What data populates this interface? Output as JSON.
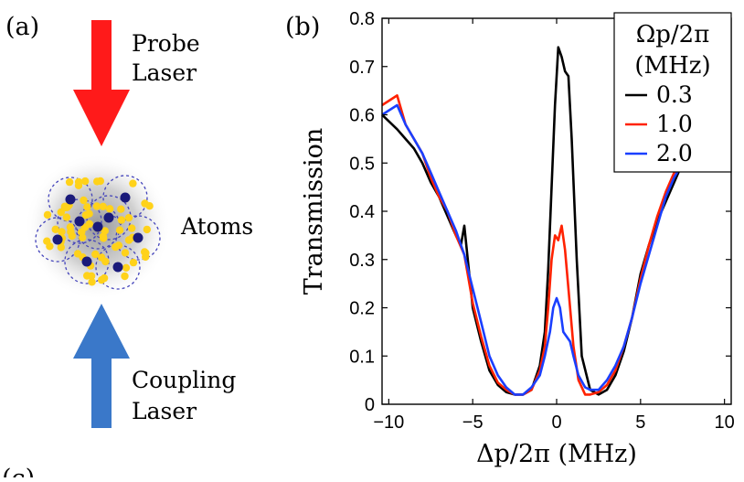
{
  "panel_a": {
    "label": "(a)",
    "probe_label_line1": "Probe",
    "probe_label_line2": "Laser",
    "atoms_label": "Atoms",
    "coupling_label_line1": "Coupling",
    "coupling_label_line2": "Laser",
    "probe_arrow_color": "#ff1a1a",
    "coupling_arrow_color": "#3a78c9",
    "atom_small_color": "#ffd21a",
    "atom_large_color": "#1a1a7a",
    "next_panel_label": "(c)"
  },
  "panel_b": {
    "label": "(b)"
  },
  "chart_data": {
    "type": "line",
    "title": "",
    "xlabel": "Δp/2π (MHz)",
    "ylabel": "Transmission",
    "xlim": [
      -10.4,
      10.4
    ],
    "ylim": [
      0,
      0.8
    ],
    "xticks": [
      -10,
      -5,
      0,
      5,
      10
    ],
    "xtick_labels": [
      "−10",
      "−5",
      "0",
      "5",
      "10"
    ],
    "yticks": [
      0,
      0.1,
      0.2,
      0.3,
      0.4,
      0.5,
      0.6,
      0.7,
      0.8
    ],
    "ytick_labels": [
      "0",
      "0.1",
      "0.2",
      "0.3",
      "0.4",
      "0.5",
      "0.6",
      "0.7",
      "0.8"
    ],
    "grid": false,
    "legend": {
      "position": "top-right",
      "title_line1": "Ωp/2π",
      "title_line2": "(MHz)"
    },
    "series": [
      {
        "name": "0.3",
        "color": "#000000",
        "x": [
          -10.4,
          -9.5,
          -9,
          -8.5,
          -8,
          -7.5,
          -7,
          -6.5,
          -6,
          -5.7,
          -5.5,
          -5,
          -4.5,
          -4,
          -3.5,
          -3,
          -2.5,
          -2,
          -1.5,
          -1,
          -0.7,
          -0.5,
          -0.3,
          -0.1,
          0.1,
          0.3,
          0.5,
          0.7,
          0.9,
          1.2,
          1.5,
          2,
          2.5,
          3,
          3.5,
          4,
          4.5,
          5,
          5.5,
          6,
          6.5,
          7,
          7.5
        ],
        "values": [
          0.6,
          0.57,
          0.55,
          0.53,
          0.5,
          0.46,
          0.43,
          0.39,
          0.35,
          0.33,
          0.37,
          0.2,
          0.13,
          0.07,
          0.04,
          0.025,
          0.02,
          0.02,
          0.03,
          0.08,
          0.15,
          0.28,
          0.45,
          0.62,
          0.74,
          0.72,
          0.69,
          0.68,
          0.55,
          0.3,
          0.1,
          0.03,
          0.02,
          0.03,
          0.06,
          0.11,
          0.18,
          0.27,
          0.33,
          0.38,
          0.42,
          0.46,
          0.5
        ]
      },
      {
        "name": "1.0",
        "color": "#ff2200",
        "x": [
          -10.4,
          -9.5,
          -9,
          -8.5,
          -8,
          -7.5,
          -7,
          -6.5,
          -6,
          -5.5,
          -5,
          -4.5,
          -4,
          -3.5,
          -3,
          -2.5,
          -2,
          -1.5,
          -1,
          -0.7,
          -0.5,
          -0.3,
          -0.1,
          0.1,
          0.3,
          0.5,
          0.7,
          1,
          1.3,
          1.7,
          2,
          2.5,
          3,
          3.5,
          4,
          4.5,
          5,
          5.5,
          6,
          6.5,
          7,
          7.5
        ],
        "values": [
          0.62,
          0.64,
          0.58,
          0.55,
          0.52,
          0.47,
          0.43,
          0.4,
          0.35,
          0.31,
          0.21,
          0.14,
          0.08,
          0.045,
          0.03,
          0.02,
          0.02,
          0.03,
          0.07,
          0.12,
          0.2,
          0.3,
          0.35,
          0.34,
          0.37,
          0.32,
          0.24,
          0.12,
          0.05,
          0.02,
          0.02,
          0.025,
          0.04,
          0.07,
          0.12,
          0.18,
          0.26,
          0.33,
          0.39,
          0.44,
          0.48,
          0.52
        ]
      },
      {
        "name": "2.0",
        "color": "#1a3fff",
        "x": [
          -10.4,
          -9.5,
          -9,
          -8.5,
          -8,
          -7.5,
          -7,
          -6.5,
          -6,
          -5.5,
          -5,
          -4.5,
          -4,
          -3.5,
          -3,
          -2.5,
          -2,
          -1.5,
          -1,
          -0.7,
          -0.4,
          -0.2,
          0,
          0.2,
          0.4,
          0.6,
          0.8,
          1,
          1.3,
          1.7,
          2,
          2.5,
          3,
          3.5,
          4,
          4.5,
          5,
          5.5,
          6,
          6.5,
          7,
          7.5
        ],
        "values": [
          0.6,
          0.62,
          0.58,
          0.55,
          0.52,
          0.48,
          0.44,
          0.4,
          0.36,
          0.31,
          0.24,
          0.17,
          0.1,
          0.06,
          0.035,
          0.02,
          0.02,
          0.035,
          0.06,
          0.1,
          0.15,
          0.2,
          0.22,
          0.2,
          0.15,
          0.14,
          0.13,
          0.1,
          0.06,
          0.035,
          0.03,
          0.03,
          0.05,
          0.08,
          0.12,
          0.18,
          0.25,
          0.31,
          0.37,
          0.43,
          0.47,
          0.5
        ]
      }
    ]
  }
}
